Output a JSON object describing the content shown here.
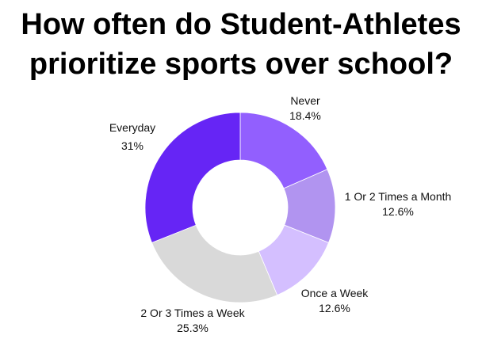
{
  "chart_data": {
    "type": "pie",
    "variant": "donut",
    "title_lines": [
      "How often do Student-Athletes",
      "prioritize sports over school?"
    ],
    "categories": [
      "Never",
      "1 Or 2 Times a Month",
      "Once a Week",
      "2 Or 3 Times a Week",
      "Everyday"
    ],
    "values": [
      18.4,
      12.6,
      12.6,
      25.3,
      31
    ],
    "value_labels": [
      "18.4%",
      "12.6%",
      "12.6%",
      "25.3%",
      "31%"
    ],
    "colors": [
      "#925ffe",
      "#b194f0",
      "#d4bfff",
      "#d9d9d9",
      "#6625f5"
    ],
    "start": "top",
    "direction": "clockwise",
    "legend": "none"
  }
}
